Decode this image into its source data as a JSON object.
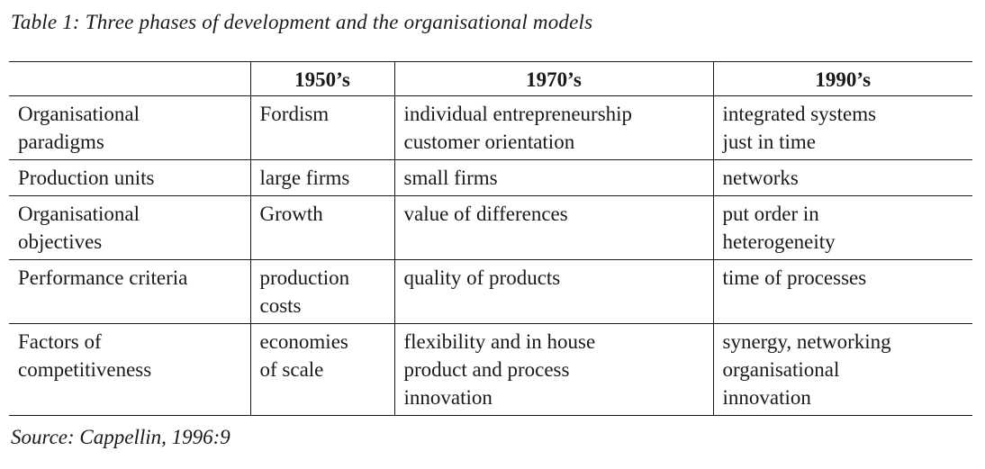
{
  "caption": "Table 1: Three phases of development and the organisational models",
  "table": {
    "headers": [
      "",
      "1950’s",
      "1970’s",
      "1990’s"
    ],
    "rows": [
      {
        "label": [
          "Organisational",
          "paradigms"
        ],
        "cells": [
          [
            "Fordism"
          ],
          [
            "individual entrepreneurship",
            "customer orientation"
          ],
          [
            "integrated systems",
            "just in time"
          ]
        ]
      },
      {
        "label": [
          "Production units"
        ],
        "cells": [
          [
            "large firms"
          ],
          [
            "small firms"
          ],
          [
            "networks"
          ]
        ]
      },
      {
        "label": [
          "Organisational",
          "objectives"
        ],
        "cells": [
          [
            "Growth"
          ],
          [
            "value of differences"
          ],
          [
            "put order in",
            "heterogeneity"
          ]
        ]
      },
      {
        "label": [
          "Performance criteria"
        ],
        "cells": [
          [
            "production",
            "costs"
          ],
          [
            "quality of products"
          ],
          [
            "time of processes"
          ]
        ]
      },
      {
        "label": [
          "Factors of",
          "competitiveness"
        ],
        "cells": [
          [
            "economies",
            "of scale"
          ],
          [
            "flexibility and in house",
            "product and process",
            "innovation"
          ],
          [
            "synergy, networking",
            "organisational",
            "innovation"
          ]
        ]
      }
    ]
  },
  "source": "Source: Cappellin, 1996:9"
}
